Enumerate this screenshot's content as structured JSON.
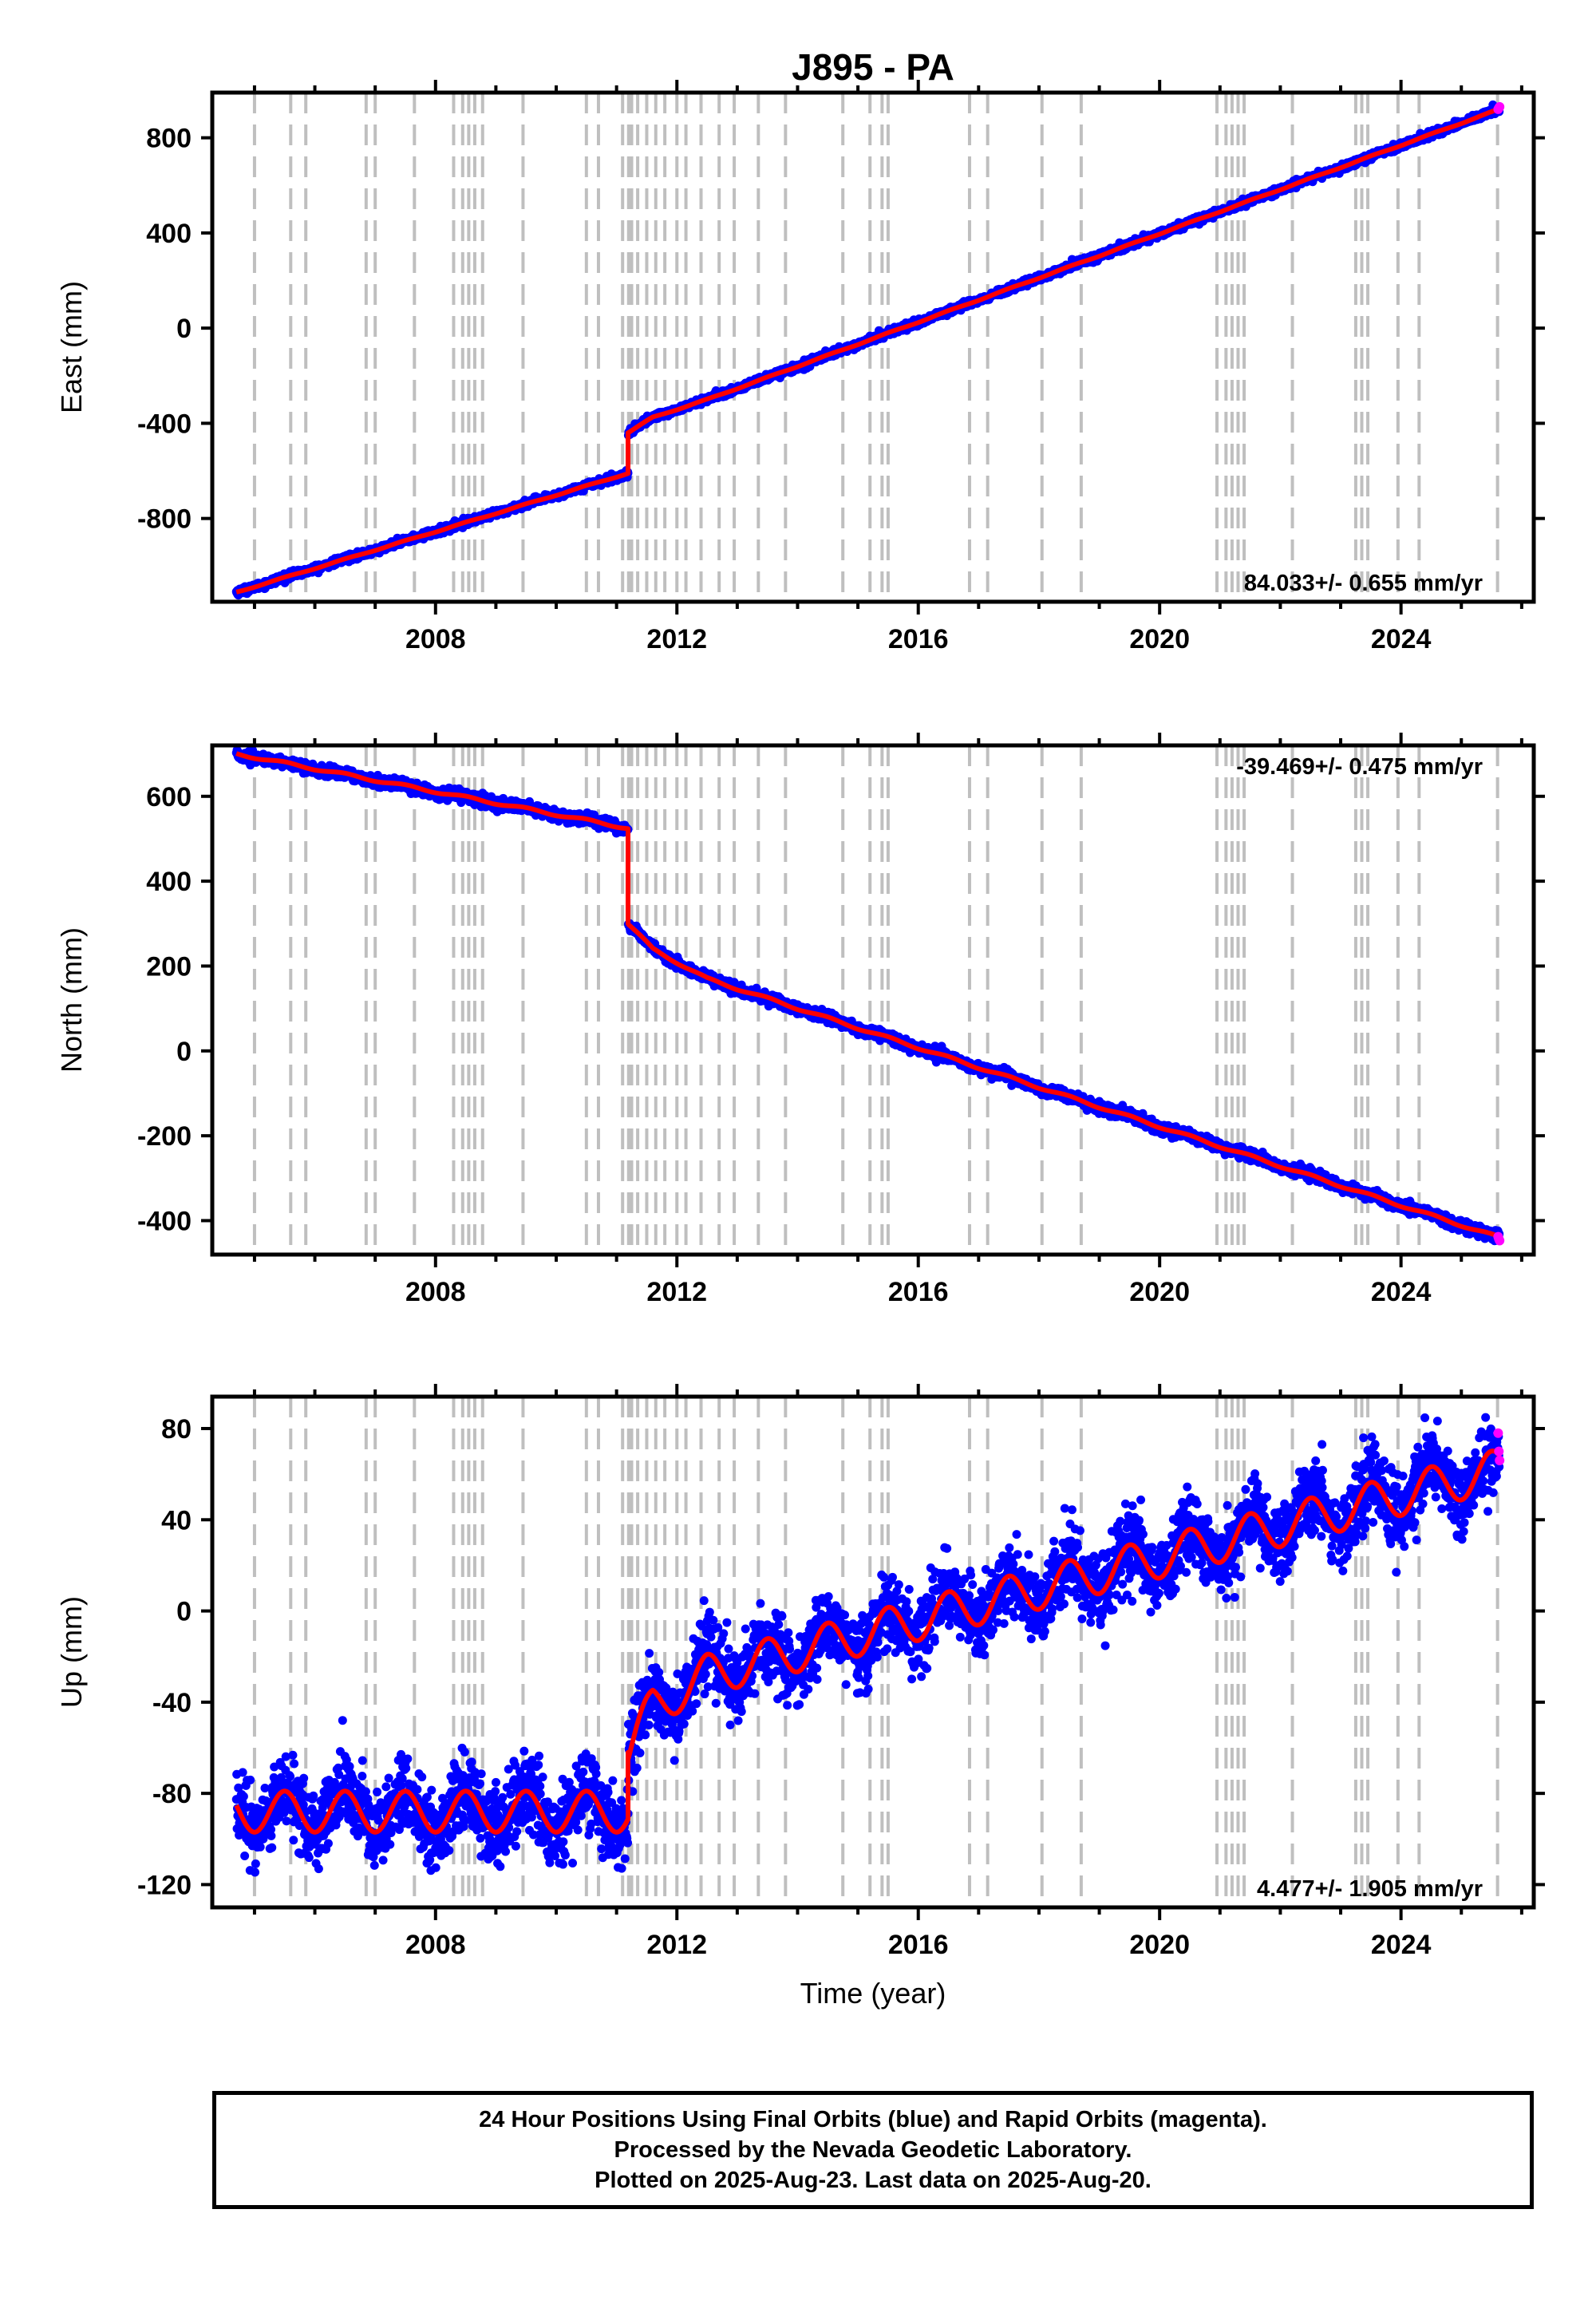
{
  "chart_data": [
    {
      "type": "scatter",
      "component": "east",
      "title": "J895 - PA",
      "ylabel": "East (mm)",
      "xlabel": "",
      "x_range": [
        2004.3,
        2026.2
      ],
      "ylim": [
        -1150,
        990
      ],
      "y_ticks": [
        -800,
        -400,
        0,
        400,
        800
      ],
      "y_tick_labels": [
        "-800",
        "-400",
        "0",
        "400",
        "800"
      ],
      "x_ticks": [
        2008,
        2012,
        2016,
        2020,
        2024
      ],
      "x_tick_labels": [
        "2008",
        "2012",
        "2016",
        "2020",
        "2024"
      ],
      "rate_label": "84.033+/- 0.655 mm/yr",
      "rate_position": "bottom-right",
      "model": {
        "start": 2004.7,
        "end": 2025.63,
        "offset_epoch": 2011.19,
        "breakpoints": [
          {
            "x": 2004.7,
            "y": -1110
          },
          {
            "x": 2011.19,
            "y": -610
          },
          {
            "x": 2011.19,
            "y": -440
          },
          {
            "x": 2011.6,
            "y": -375
          },
          {
            "x": 2012.5,
            "y": -300
          },
          {
            "x": 2025.63,
            "y": 920
          }
        ],
        "seasonal_amplitude": 2
      },
      "scatter_spread": 7,
      "rapid_orbit_points": [
        920,
        925,
        930
      ]
    },
    {
      "type": "scatter",
      "component": "north",
      "title": "",
      "ylabel": "North (mm)",
      "xlabel": "",
      "x_range": [
        2004.3,
        2026.2
      ],
      "ylim": [
        -480,
        720
      ],
      "y_ticks": [
        -400,
        -200,
        0,
        200,
        400,
        600
      ],
      "y_tick_labels": [
        "-400",
        "-200",
        "0",
        "200",
        "400",
        "600"
      ],
      "x_ticks": [
        2008,
        2012,
        2016,
        2020,
        2024
      ],
      "x_tick_labels": [
        "2008",
        "2012",
        "2016",
        "2020",
        "2024"
      ],
      "rate_label": "-39.469+/- 0.475 mm/yr",
      "rate_position": "top-right",
      "model": {
        "start": 2004.7,
        "end": 2025.63,
        "offset_epoch": 2011.19,
        "breakpoints": [
          {
            "x": 2004.7,
            "y": 700
          },
          {
            "x": 2011.19,
            "y": 525
          },
          {
            "x": 2011.19,
            "y": 300
          },
          {
            "x": 2011.6,
            "y": 240
          },
          {
            "x": 2012.5,
            "y": 170
          },
          {
            "x": 2025.63,
            "y": -440
          }
        ],
        "seasonal_amplitude": 3
      },
      "scatter_spread": 6,
      "rapid_orbit_points": [
        -438,
        -443,
        -447
      ]
    },
    {
      "type": "scatter",
      "component": "up",
      "title": "",
      "ylabel": "Up (mm)",
      "xlabel": "Time (year)",
      "x_range": [
        2004.3,
        2026.2
      ],
      "ylim": [
        -130,
        94
      ],
      "y_ticks": [
        -120,
        -80,
        -40,
        0,
        40,
        80
      ],
      "y_tick_labels": [
        "-120",
        "-80",
        "-40",
        "0",
        "40",
        "80"
      ],
      "x_ticks": [
        2008,
        2012,
        2016,
        2020,
        2024
      ],
      "x_tick_labels": [
        "2008",
        "2012",
        "2016",
        "2020",
        "2024"
      ],
      "rate_label": "4.477+/- 1.905 mm/yr",
      "rate_position": "bottom-right",
      "model": {
        "start": 2004.7,
        "end": 2025.63,
        "offset_epoch": 2011.19,
        "breakpoints": [
          {
            "x": 2004.7,
            "y": -88
          },
          {
            "x": 2011.19,
            "y": -88
          },
          {
            "x": 2011.19,
            "y": -62
          },
          {
            "x": 2011.6,
            "y": -42
          },
          {
            "x": 2012.5,
            "y": -28
          },
          {
            "x": 2025.63,
            "y": 62
          }
        ],
        "seasonal_amplitude": 9
      },
      "scatter_spread": 8,
      "rapid_orbit_points": [
        78,
        70,
        66
      ]
    }
  ],
  "equipment_change_epochs": [
    2005.0,
    2005.6,
    2005.85,
    2006.85,
    2007.0,
    2007.65,
    2008.3,
    2008.45,
    2008.55,
    2008.65,
    2008.78,
    2009.45,
    2010.5,
    2010.7,
    2011.1,
    2011.2,
    2011.25,
    2011.35,
    2011.5,
    2011.65,
    2011.8,
    2012.0,
    2012.15,
    2012.4,
    2012.7,
    2012.95,
    2013.35,
    2013.8,
    2014.75,
    2015.2,
    2015.4,
    2015.5,
    2016.85,
    2017.15,
    2018.05,
    2018.7,
    2020.95,
    2021.1,
    2021.2,
    2021.3,
    2021.4,
    2022.2,
    2023.25,
    2023.35,
    2023.45,
    2023.95,
    2024.3,
    2025.6
  ],
  "colors": {
    "final_orbits": "#0000ff",
    "rapid_orbits": "#ff00ff",
    "model": "#ff0000",
    "event_lines": "#bfbfbf"
  },
  "footer": {
    "line1": "24 Hour Positions Using Final Orbits (blue) and Rapid Orbits (magenta).",
    "line2": "Processed by the Nevada Geodetic Laboratory.",
    "line3": "Plotted on 2025-Aug-23. Last data on 2025-Aug-20."
  }
}
